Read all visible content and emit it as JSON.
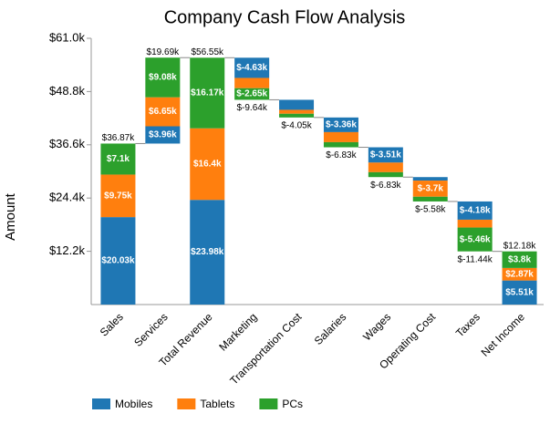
{
  "chart_data": {
    "type": "waterfall",
    "title": "Company Cash Flow Analysis",
    "y_label": "Amount",
    "categories": [
      "Sales",
      "Services",
      "Total Revenue",
      "Marketing",
      "Transportation Cost",
      "Salaries",
      "Wages",
      "Operating Cost",
      "Taxes",
      "Net Income"
    ],
    "is_total": [
      false,
      false,
      true,
      false,
      false,
      false,
      false,
      false,
      false,
      true
    ],
    "series": [
      {
        "name": "Mobiles",
        "color": "#1f77b4",
        "values": [
          20.03,
          3.96,
          23.98,
          -4.63,
          -2.3,
          -3.36,
          -3.51,
          -0.8,
          -4.18,
          5.51
        ],
        "value_labels": [
          "$20.03k",
          "$3.96k",
          "$23.98k",
          "$-4.63k",
          null,
          "$-3.36k",
          "$-3.51k",
          null,
          "$-4.18k",
          "$5.51k"
        ]
      },
      {
        "name": "Tablets",
        "color": "#ff7f0e",
        "values": [
          9.75,
          6.65,
          16.4,
          -2.36,
          -0.9,
          -2.3,
          -2.2,
          -3.7,
          -1.8,
          2.87
        ],
        "value_labels": [
          "$9.75k",
          "$6.65k",
          "$16.4k",
          null,
          null,
          null,
          null,
          "$-3.7k",
          null,
          "$2.87k"
        ]
      },
      {
        "name": "PCs",
        "color": "#2ca02c",
        "values": [
          7.1,
          9.08,
          16.17,
          -2.65,
          -0.85,
          -1.17,
          -1.12,
          -1.08,
          -5.46,
          3.8
        ],
        "value_labels": [
          "$7.1k",
          "$9.08k",
          "$16.17k",
          "$-2.65k",
          null,
          null,
          null,
          null,
          "$-5.46k",
          "$3.8k"
        ]
      }
    ],
    "totals": [
      36.87,
      19.69,
      56.55,
      -9.64,
      -4.05,
      -6.83,
      -6.83,
      -5.58,
      -11.44,
      12.18
    ],
    "total_labels": [
      "$36.87k",
      "$19.69k",
      "$56.55k",
      "$-9.64k",
      "$-4.05k",
      "$-6.83k",
      "$-6.83k",
      "$-5.58k",
      "$-11.44k",
      "$12.18k"
    ],
    "ylim": [
      0,
      61
    ],
    "yticks": [
      {
        "value": 12.2,
        "label": "$12.2k"
      },
      {
        "value": 24.4,
        "label": "$24.4k"
      },
      {
        "value": 36.6,
        "label": "$36.6k"
      },
      {
        "value": 48.8,
        "label": "$48.8k"
      },
      {
        "value": 61,
        "label": "$61.0k"
      }
    ],
    "legend": "bottom"
  }
}
